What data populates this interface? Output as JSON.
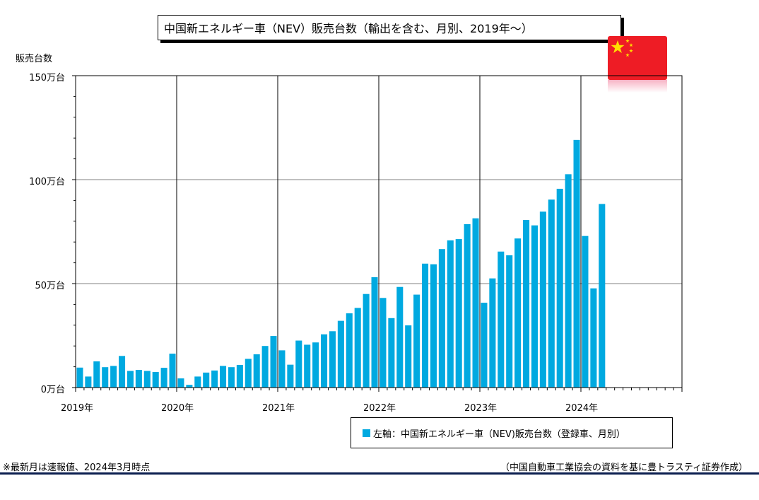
{
  "title": "中国新エネルギー車（NEV）販売台数（輸出を含む、月別、2019年～）",
  "ylabel": "販売台数",
  "legend_label": "左軸：中国新エネルギー車（NEV)販売台数（登録車、月別）",
  "footnote": "※最新月は速報値、2024年3月時点",
  "source": "（中国自動車工業協会の資料を基に豊トラスティ証券作成）",
  "flag_icon": "china-flag-icon",
  "colors": {
    "bar": "#00A9E0",
    "flag_red": "#EE1C25",
    "flag_star": "#FFDE00",
    "rule": "#0b1e4f"
  },
  "chart_data": {
    "type": "bar",
    "ylabel": "販売台数",
    "unit": "万台",
    "ylim": [
      0,
      150
    ],
    "y_ticks": [
      {
        "value": 0,
        "label": "0万台"
      },
      {
        "value": 50,
        "label": "50万台"
      },
      {
        "value": 100,
        "label": "100万台"
      },
      {
        "value": 150,
        "label": "150万台"
      }
    ],
    "x_ticks": [
      "2019年",
      "2020年",
      "2021年",
      "2022年",
      "2023年",
      "2024年"
    ],
    "grid": true,
    "legend_position": "bottom-right",
    "start": "2019-01",
    "slots": 72,
    "series": [
      {
        "name": "中国新エネルギー車（NEV)販売台数（登録車、月別）",
        "values": [
          9.6,
          5.3,
          12.6,
          9.8,
          10.4,
          15.2,
          8.0,
          8.5,
          8.0,
          7.5,
          9.5,
          16.3,
          4.4,
          1.3,
          5.3,
          7.2,
          8.2,
          10.4,
          9.8,
          10.9,
          13.8,
          16.0,
          20.0,
          24.8,
          17.9,
          11.0,
          22.6,
          20.6,
          21.7,
          25.6,
          27.1,
          32.1,
          35.7,
          38.3,
          45.0,
          53.1,
          43.1,
          33.4,
          48.4,
          29.9,
          44.7,
          59.6,
          59.3,
          66.6,
          70.8,
          71.4,
          78.6,
          81.4,
          40.8,
          52.5,
          65.4,
          63.6,
          71.7,
          80.6,
          78.0,
          84.6,
          90.4,
          95.6,
          102.6,
          119.1,
          72.9,
          47.7,
          88.3
        ]
      }
    ]
  }
}
